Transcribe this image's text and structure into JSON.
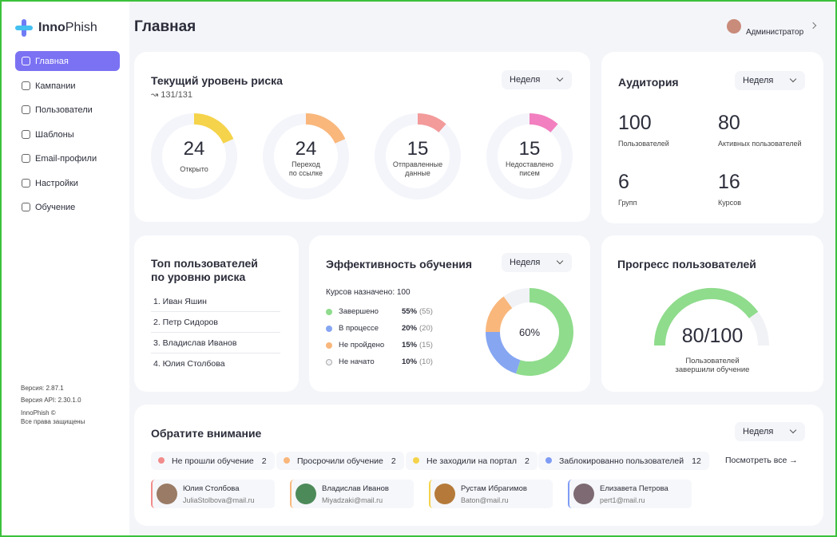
{
  "logo": {
    "bold": "Inno",
    "light": "Phish"
  },
  "nav": [
    {
      "label": "Главная",
      "active": true
    },
    {
      "label": "Кампании",
      "active": false
    },
    {
      "label": "Пользователи",
      "active": false
    },
    {
      "label": "Шаблоны",
      "active": false
    },
    {
      "label": "Email-профили",
      "active": false
    },
    {
      "label": "Настройки",
      "active": false
    },
    {
      "label": "Обучение",
      "active": false
    }
  ],
  "footer": [
    "Версия: 2.87.1",
    "Версия API: 2.30.1.0",
    "InnoPhish ©",
    "Все права защищены"
  ],
  "header": {
    "title": "Главная",
    "user": "Администратор"
  },
  "risk": {
    "title": "Текущий уровень риска",
    "period": "Неделя",
    "count": "131/131",
    "rings": [
      {
        "value": 24,
        "label_lines": [
          "Открыто"
        ],
        "color": "#f5d34a"
      },
      {
        "value": 24,
        "label_lines": [
          "Переход",
          "по ссылке"
        ],
        "color": "#f9b77c"
      },
      {
        "value": 15,
        "label_lines": [
          "Отправленные",
          "данные"
        ],
        "color": "#f39a9a"
      },
      {
        "value": 15,
        "label_lines": [
          "Недоставлено",
          "писем"
        ],
        "color": "#f27fbf"
      }
    ]
  },
  "audience": {
    "title": "Аудитория",
    "period": "Неделя",
    "stats": [
      {
        "value": 100,
        "label": "Пользователей"
      },
      {
        "value": 80,
        "label": "Активных пользователей"
      },
      {
        "value": 6,
        "label": "Групп"
      },
      {
        "value": 16,
        "label": "Курсов"
      }
    ]
  },
  "top_users": {
    "title_lines": [
      "Топ пользователей",
      "по уровню риска"
    ],
    "items": [
      "1. Иван Яшин",
      "2. Петр Сидоров",
      "3. Владислав Иванов",
      "4. Юлия Столбова"
    ]
  },
  "training": {
    "title": "Эффективность обучения",
    "period": "Неделя",
    "assigned": "Курсов назначено: 100",
    "center": "60%",
    "legend": [
      {
        "label": "Завершено",
        "percent": 55,
        "percent_label": "55%",
        "count": "(55)",
        "color": "#8fdc8c"
      },
      {
        "label": "В процессе",
        "percent": 20,
        "percent_label": "20%",
        "count": "(20)",
        "color": "#86a6f2"
      },
      {
        "label": "Не пройдено",
        "percent": 15,
        "percent_label": "15%",
        "count": "(15)",
        "color": "#f9b77c"
      },
      {
        "label": "Не начато",
        "percent": 10,
        "percent_label": "10%",
        "count": "(10)",
        "color": "#f1f2f6"
      }
    ]
  },
  "progress": {
    "title": "Прогресс пользователей",
    "value": "80/100",
    "caption_lines": [
      "Пользователей",
      "завершили обучение"
    ],
    "color": "#8fdc8c"
  },
  "attention": {
    "title": "Обратите внимание",
    "period": "Неделя",
    "more": "Посмотреть все",
    "tabs": [
      {
        "label": "Не прошли обучение",
        "count": 2,
        "color": "#f28b8b"
      },
      {
        "label": "Просрочили обучение",
        "count": 2,
        "color": "#f9b77c"
      },
      {
        "label": "Не заходили на портал",
        "count": 2,
        "color": "#f5d34a"
      },
      {
        "label": "Заблокированно пользователей",
        "count": 12,
        "color": "#7f9cf5"
      }
    ],
    "users": [
      {
        "name": "Юлия Столбова",
        "email": "JuliaStolbova@mail.ru",
        "color": "#f28b8b"
      },
      {
        "name": "Владислав Иванов",
        "email": "Miyadzaki@mail.ru",
        "color": "#f9b77c"
      },
      {
        "name": "Рустам Ибрагимов",
        "email": "Baton@mail.ru",
        "color": "#f5d34a"
      },
      {
        "name": "Елизавета Петрова",
        "email": "pert1@mail.ru",
        "color": "#7f9cf5"
      }
    ]
  }
}
